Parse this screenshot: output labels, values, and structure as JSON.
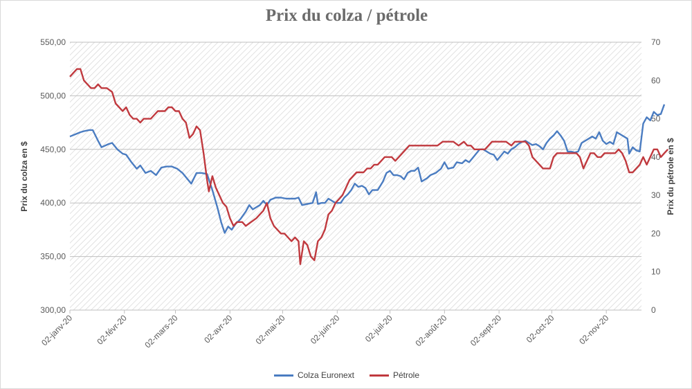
{
  "chart_data": {
    "type": "line",
    "title": "Prix du colza / pétrole",
    "ylabel_left": "Prix du colza en $",
    "ylabel_right": "Prix du pétrole en $",
    "ylim_left": [
      300,
      550
    ],
    "ylim_right": [
      0,
      70
    ],
    "yticks_left": [
      "300,00",
      "350,00",
      "400,00",
      "450,00",
      "500,00",
      "550,00"
    ],
    "yticks_right": [
      "0",
      "10",
      "20",
      "30",
      "40",
      "50",
      "60",
      "70"
    ],
    "xticks": [
      "02-janv-20",
      "02-févr-20",
      "02-mars-20",
      "02-avr-20",
      "02-mai-20",
      "02-juin-20",
      "02-juil-20",
      "02-août-20",
      "02-sept-20",
      "02-oct-20",
      "02-nov-20"
    ],
    "x_range_days": [
      0,
      325
    ],
    "grid": "horizontal",
    "legend_position": "bottom",
    "series": [
      {
        "name": "Colza Euronext",
        "axis": "left",
        "color": "#4a7cc1",
        "points": [
          [
            0,
            462
          ],
          [
            3,
            464
          ],
          [
            6,
            466
          ],
          [
            8,
            467
          ],
          [
            11,
            468
          ],
          [
            13,
            468
          ],
          [
            16,
            458
          ],
          [
            18,
            452
          ],
          [
            22,
            455
          ],
          [
            24,
            456
          ],
          [
            27,
            450
          ],
          [
            30,
            446
          ],
          [
            32,
            445
          ],
          [
            35,
            438
          ],
          [
            38,
            432
          ],
          [
            40,
            435
          ],
          [
            43,
            428
          ],
          [
            46,
            430
          ],
          [
            49,
            426
          ],
          [
            52,
            433
          ],
          [
            55,
            434
          ],
          [
            58,
            434
          ],
          [
            61,
            432
          ],
          [
            64,
            428
          ],
          [
            66,
            424
          ],
          [
            69,
            418
          ],
          [
            72,
            428
          ],
          [
            75,
            428
          ],
          [
            78,
            427
          ],
          [
            81,
            412
          ],
          [
            84,
            395
          ],
          [
            86,
            382
          ],
          [
            88,
            372
          ],
          [
            90,
            378
          ],
          [
            92,
            375
          ],
          [
            94,
            380
          ],
          [
            97,
            385
          ],
          [
            100,
            392
          ],
          [
            102,
            398
          ],
          [
            104,
            394
          ],
          [
            106,
            396
          ],
          [
            108,
            398
          ],
          [
            110,
            402
          ],
          [
            112,
            398
          ],
          [
            114,
            403
          ],
          [
            117,
            405
          ],
          [
            120,
            405
          ],
          [
            123,
            404
          ],
          [
            126,
            404
          ],
          [
            128,
            404
          ],
          [
            130,
            405
          ],
          [
            132,
            398
          ],
          [
            135,
            399
          ],
          [
            138,
            400
          ],
          [
            140,
            410
          ],
          [
            141,
            399
          ],
          [
            143,
            400
          ],
          [
            145,
            400
          ],
          [
            147,
            404
          ],
          [
            149,
            402
          ],
          [
            151,
            400
          ],
          [
            154,
            400
          ],
          [
            156,
            405
          ],
          [
            158,
            408
          ],
          [
            160,
            412
          ],
          [
            162,
            418
          ],
          [
            164,
            415
          ],
          [
            166,
            416
          ],
          [
            168,
            414
          ],
          [
            170,
            408
          ],
          [
            172,
            412
          ],
          [
            175,
            412
          ],
          [
            178,
            420
          ],
          [
            180,
            428
          ],
          [
            182,
            430
          ],
          [
            184,
            426
          ],
          [
            186,
            426
          ],
          [
            188,
            425
          ],
          [
            190,
            422
          ],
          [
            192,
            428
          ],
          [
            194,
            430
          ],
          [
            196,
            430
          ],
          [
            198,
            433
          ],
          [
            200,
            420
          ],
          [
            203,
            423
          ],
          [
            205,
            426
          ],
          [
            208,
            428
          ],
          [
            211,
            432
          ],
          [
            213,
            438
          ],
          [
            215,
            432
          ],
          [
            218,
            433
          ],
          [
            220,
            438
          ],
          [
            223,
            437
          ],
          [
            225,
            440
          ],
          [
            227,
            438
          ],
          [
            229,
            442
          ],
          [
            231,
            446
          ],
          [
            233,
            450
          ],
          [
            235,
            450
          ],
          [
            237,
            448
          ],
          [
            239,
            446
          ],
          [
            241,
            445
          ],
          [
            243,
            440
          ],
          [
            245,
            444
          ],
          [
            247,
            448
          ],
          [
            249,
            446
          ],
          [
            251,
            450
          ],
          [
            253,
            452
          ],
          [
            255,
            455
          ],
          [
            257,
            457
          ],
          [
            259,
            458
          ],
          [
            261,
            456
          ],
          [
            263,
            454
          ],
          [
            265,
            455
          ],
          [
            267,
            453
          ],
          [
            269,
            450
          ],
          [
            271,
            456
          ],
          [
            273,
            460
          ],
          [
            275,
            463
          ],
          [
            277,
            467
          ],
          [
            279,
            463
          ],
          [
            281,
            458
          ],
          [
            283,
            448
          ],
          [
            285,
            448
          ],
          [
            287,
            447
          ],
          [
            289,
            448
          ],
          [
            291,
            456
          ],
          [
            293,
            458
          ],
          [
            295,
            460
          ],
          [
            297,
            462
          ],
          [
            299,
            460
          ],
          [
            301,
            466
          ],
          [
            303,
            458
          ],
          [
            305,
            455
          ],
          [
            307,
            457
          ],
          [
            309,
            455
          ],
          [
            311,
            466
          ],
          [
            313,
            464
          ],
          [
            315,
            462
          ],
          [
            317,
            460
          ],
          [
            318,
            446
          ],
          [
            320,
            452
          ],
          [
            322,
            449
          ],
          [
            324,
            448
          ],
          [
            326,
            474
          ],
          [
            328,
            480
          ],
          [
            330,
            477
          ],
          [
            332,
            485
          ],
          [
            334,
            482
          ],
          [
            336,
            483
          ],
          [
            338,
            492
          ]
        ]
      },
      {
        "name": "Pétrole",
        "axis": "right",
        "color": "#c0393e",
        "points": [
          [
            0,
            61
          ],
          [
            2,
            62
          ],
          [
            4,
            63
          ],
          [
            6,
            63
          ],
          [
            8,
            60
          ],
          [
            10,
            59
          ],
          [
            12,
            58
          ],
          [
            14,
            58
          ],
          [
            16,
            59
          ],
          [
            18,
            58
          ],
          [
            21,
            58
          ],
          [
            24,
            57
          ],
          [
            26,
            54
          ],
          [
            28,
            53
          ],
          [
            30,
            52
          ],
          [
            32,
            53
          ],
          [
            34,
            51
          ],
          [
            36,
            50
          ],
          [
            38,
            50
          ],
          [
            40,
            49
          ],
          [
            42,
            50
          ],
          [
            44,
            50
          ],
          [
            46,
            50
          ],
          [
            48,
            51
          ],
          [
            50,
            52
          ],
          [
            52,
            52
          ],
          [
            54,
            52
          ],
          [
            56,
            53
          ],
          [
            58,
            53
          ],
          [
            60,
            52
          ],
          [
            62,
            52
          ],
          [
            64,
            50
          ],
          [
            66,
            49
          ],
          [
            68,
            45
          ],
          [
            70,
            46
          ],
          [
            72,
            48
          ],
          [
            74,
            47
          ],
          [
            76,
            41
          ],
          [
            78,
            34
          ],
          [
            79,
            31
          ],
          [
            81,
            35
          ],
          [
            83,
            32
          ],
          [
            85,
            30
          ],
          [
            87,
            28
          ],
          [
            89,
            27
          ],
          [
            91,
            24
          ],
          [
            93,
            22
          ],
          [
            95,
            23
          ],
          [
            98,
            23
          ],
          [
            100,
            22
          ],
          [
            103,
            23
          ],
          [
            106,
            24
          ],
          [
            108,
            25
          ],
          [
            110,
            26
          ],
          [
            112,
            28
          ],
          [
            114,
            24
          ],
          [
            116,
            22
          ],
          [
            118,
            21
          ],
          [
            120,
            20
          ],
          [
            122,
            20
          ],
          [
            124,
            19
          ],
          [
            126,
            18
          ],
          [
            128,
            19
          ],
          [
            130,
            18
          ],
          [
            131,
            12
          ],
          [
            133,
            18
          ],
          [
            135,
            17
          ],
          [
            137,
            14
          ],
          [
            139,
            13
          ],
          [
            141,
            18
          ],
          [
            143,
            19
          ],
          [
            145,
            21
          ],
          [
            147,
            25
          ],
          [
            149,
            26
          ],
          [
            151,
            28
          ],
          [
            153,
            29
          ],
          [
            155,
            30
          ],
          [
            157,
            32
          ],
          [
            159,
            34
          ],
          [
            161,
            35
          ],
          [
            163,
            36
          ],
          [
            165,
            36
          ],
          [
            167,
            36
          ],
          [
            169,
            37
          ],
          [
            171,
            37
          ],
          [
            173,
            38
          ],
          [
            175,
            38
          ],
          [
            177,
            39
          ],
          [
            179,
            40
          ],
          [
            181,
            40
          ],
          [
            183,
            40
          ],
          [
            185,
            39
          ],
          [
            187,
            40
          ],
          [
            189,
            41
          ],
          [
            191,
            42
          ],
          [
            193,
            43
          ],
          [
            195,
            43
          ],
          [
            198,
            43
          ],
          [
            200,
            43
          ],
          [
            203,
            43
          ],
          [
            206,
            43
          ],
          [
            209,
            43
          ],
          [
            212,
            44
          ],
          [
            215,
            44
          ],
          [
            218,
            44
          ],
          [
            221,
            43
          ],
          [
            224,
            44
          ],
          [
            226,
            43
          ],
          [
            228,
            43
          ],
          [
            230,
            42
          ],
          [
            232,
            42
          ],
          [
            234,
            42
          ],
          [
            236,
            42
          ],
          [
            238,
            43
          ],
          [
            240,
            44
          ],
          [
            243,
            44
          ],
          [
            246,
            44
          ],
          [
            248,
            44
          ],
          [
            251,
            43
          ],
          [
            253,
            44
          ],
          [
            256,
            44
          ],
          [
            259,
            44
          ],
          [
            261,
            43
          ],
          [
            263,
            40
          ],
          [
            265,
            39
          ],
          [
            267,
            38
          ],
          [
            269,
            37
          ],
          [
            271,
            37
          ],
          [
            273,
            37
          ],
          [
            275,
            40
          ],
          [
            277,
            41
          ],
          [
            279,
            41
          ],
          [
            281,
            41
          ],
          [
            283,
            41
          ],
          [
            286,
            41
          ],
          [
            288,
            41
          ],
          [
            290,
            40
          ],
          [
            292,
            37
          ],
          [
            294,
            39
          ],
          [
            296,
            41
          ],
          [
            298,
            41
          ],
          [
            300,
            40
          ],
          [
            302,
            40
          ],
          [
            304,
            41
          ],
          [
            306,
            41
          ],
          [
            308,
            41
          ],
          [
            310,
            41
          ],
          [
            312,
            42
          ],
          [
            314,
            41
          ],
          [
            316,
            39
          ],
          [
            318,
            36
          ],
          [
            320,
            36
          ],
          [
            322,
            37
          ],
          [
            324,
            38
          ],
          [
            326,
            40
          ],
          [
            328,
            38
          ],
          [
            330,
            40
          ],
          [
            332,
            42
          ],
          [
            334,
            42
          ],
          [
            336,
            40
          ],
          [
            338,
            41
          ],
          [
            340,
            42
          ]
        ]
      }
    ]
  }
}
